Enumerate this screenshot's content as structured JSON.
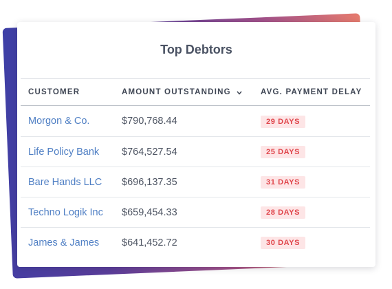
{
  "card": {
    "title": "Top Debtors"
  },
  "table": {
    "columns": {
      "customer": "CUSTOMER",
      "amount": "AMOUNT OUTSTANDING",
      "delay": "AVG. PAYMENT DELAY"
    },
    "sort_icon": "chevron-down-icon",
    "rows": [
      {
        "customer": "Morgon & Co.",
        "amount": "$790,768.44",
        "delay": "29 DAYS"
      },
      {
        "customer": "Life Policy Bank",
        "amount": "$764,527.54",
        "delay": "25 DAYS"
      },
      {
        "customer": "Bare Hands LLC",
        "amount": "$696,137.35",
        "delay": "31 DAYS"
      },
      {
        "customer": "Techno Logik Inc",
        "amount": "$659,454.33",
        "delay": "28 DAYS"
      },
      {
        "customer": "James & James",
        "amount": "$641,452.72",
        "delay": "30 DAYS"
      }
    ]
  },
  "colors": {
    "link": "#4f7fc4",
    "badge_text": "#e0454b",
    "badge_bg": "#fde5e6",
    "gradient_start": "#3d3fa6",
    "gradient_end": "#f3a06b"
  }
}
